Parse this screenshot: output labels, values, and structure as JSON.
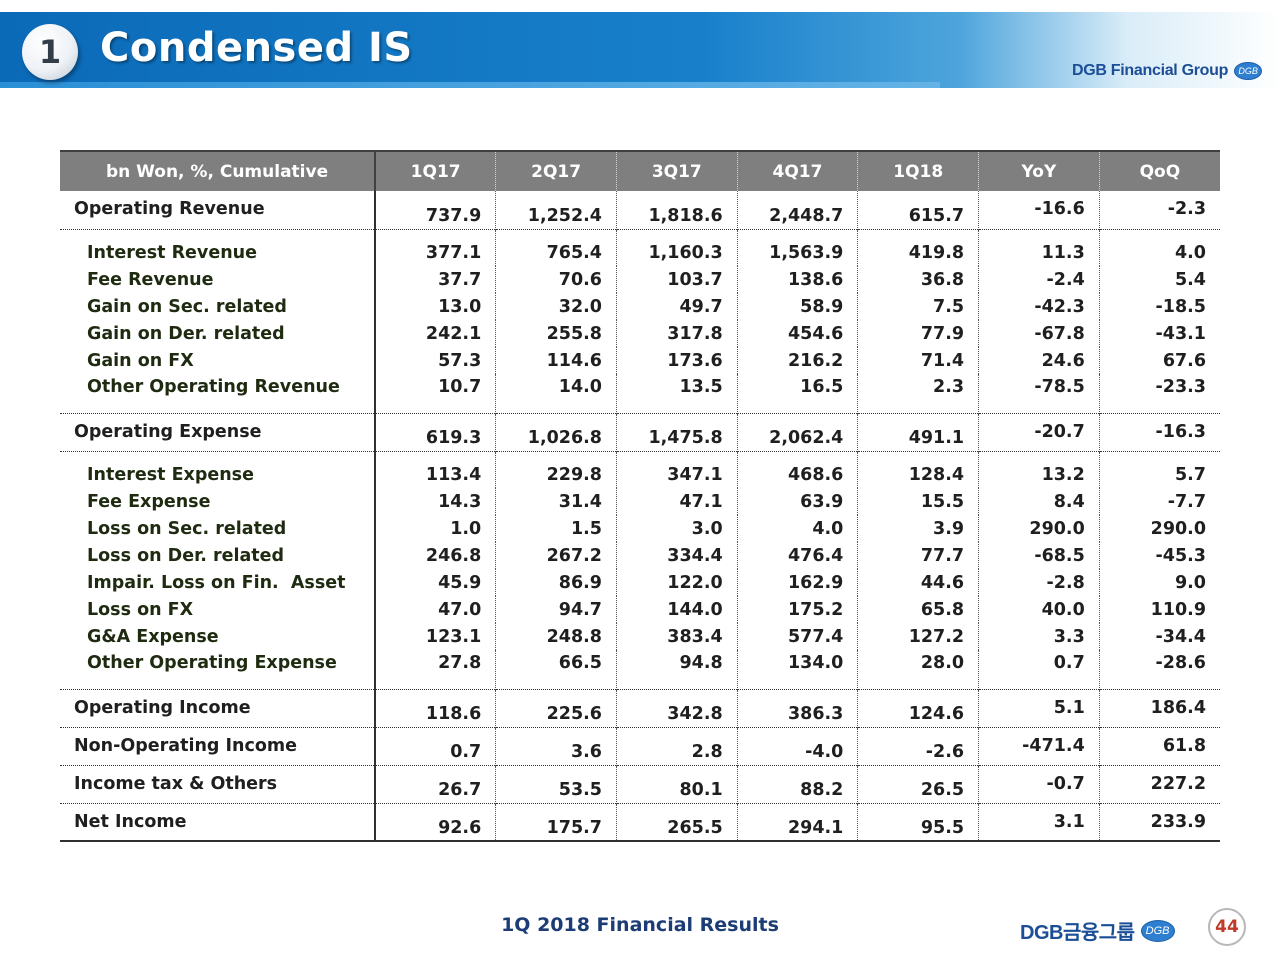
{
  "header": {
    "section_number": "1",
    "title": "Condensed IS",
    "brand": "DGB Financial Group",
    "brand_badge": "DGB"
  },
  "table": {
    "columns": [
      "bn Won, %, Cumulative",
      "1Q17",
      "2Q17",
      "3Q17",
      "4Q17",
      "1Q18",
      "YoY",
      "QoQ"
    ],
    "operating_revenue": {
      "label": "Operating Revenue",
      "values": [
        "737.9",
        "1,252.4",
        "1,818.6",
        "2,448.7",
        "615.7",
        "-16.6",
        "-2.3"
      ],
      "items": [
        {
          "label": "Interest Revenue",
          "values": [
            "377.1",
            "765.4",
            "1,160.3",
            "1,563.9",
            "419.8",
            "11.3",
            "4.0"
          ]
        },
        {
          "label": "Fee Revenue",
          "values": [
            "37.7",
            "70.6",
            "103.7",
            "138.6",
            "36.8",
            "-2.4",
            "5.4"
          ]
        },
        {
          "label": "Gain on Sec. related",
          "values": [
            "13.0",
            "32.0",
            "49.7",
            "58.9",
            "7.5",
            "-42.3",
            "-18.5"
          ]
        },
        {
          "label": "Gain on Der. related",
          "values": [
            "242.1",
            "255.8",
            "317.8",
            "454.6",
            "77.9",
            "-67.8",
            "-43.1"
          ]
        },
        {
          "label": "Gain on FX",
          "values": [
            "57.3",
            "114.6",
            "173.6",
            "216.2",
            "71.4",
            "24.6",
            "67.6"
          ]
        },
        {
          "label": "Other Operating Revenue",
          "values": [
            "10.7",
            "14.0",
            "13.5",
            "16.5",
            "2.3",
            "-78.5",
            "-23.3"
          ]
        }
      ]
    },
    "operating_expense": {
      "label": "Operating Expense",
      "values": [
        "619.3",
        "1,026.8",
        "1,475.8",
        "2,062.4",
        "491.1",
        "-20.7",
        "-16.3"
      ],
      "items": [
        {
          "label": "Interest Expense",
          "values": [
            "113.4",
            "229.8",
            "347.1",
            "468.6",
            "128.4",
            "13.2",
            "5.7"
          ]
        },
        {
          "label": "Fee Expense",
          "values": [
            "14.3",
            "31.4",
            "47.1",
            "63.9",
            "15.5",
            "8.4",
            "-7.7"
          ]
        },
        {
          "label": "Loss on Sec. related",
          "values": [
            "1.0",
            "1.5",
            "3.0",
            "4.0",
            "3.9",
            "290.0",
            "290.0"
          ]
        },
        {
          "label": "Loss on Der. related",
          "values": [
            "246.8",
            "267.2",
            "334.4",
            "476.4",
            "77.7",
            "-68.5",
            "-45.3"
          ]
        },
        {
          "label": "Impair. Loss on Fin.  Asset",
          "values": [
            "45.9",
            "86.9",
            "122.0",
            "162.9",
            "44.6",
            "-2.8",
            "9.0"
          ]
        },
        {
          "label": "Loss on FX",
          "values": [
            "47.0",
            "94.7",
            "144.0",
            "175.2",
            "65.8",
            "40.0",
            "110.9"
          ]
        },
        {
          "label": "G&A Expense",
          "values": [
            "123.1",
            "248.8",
            "383.4",
            "577.4",
            "127.2",
            "3.3",
            "-34.4"
          ]
        },
        {
          "label": "Other Operating Expense",
          "values": [
            "27.8",
            "66.5",
            "94.8",
            "134.0",
            "28.0",
            "0.7",
            "-28.6"
          ]
        }
      ]
    },
    "operating_income": {
      "label": "Operating Income",
      "values": [
        "118.6",
        "225.6",
        "342.8",
        "386.3",
        "124.6",
        "5.1",
        "186.4"
      ]
    },
    "non_operating_income": {
      "label": "Non-Operating Income",
      "values": [
        "0.7",
        "3.6",
        "2.8",
        "-4.0",
        "-2.6",
        "-471.4",
        "61.8"
      ]
    },
    "income_tax_others": {
      "label": "Income tax & Others",
      "values": [
        "26.7",
        "53.5",
        "80.1",
        "88.2",
        "26.5",
        "-0.7",
        "227.2"
      ]
    },
    "net_income": {
      "label": "Net Income",
      "values": [
        "92.6",
        "175.7",
        "265.5",
        "294.1",
        "95.5",
        "3.1",
        "233.9"
      ]
    }
  },
  "footer": {
    "title": "1Q 2018 Financial Results",
    "brand": "DGB금융그룹",
    "brand_badge": "DGB",
    "page_number": "44"
  }
}
